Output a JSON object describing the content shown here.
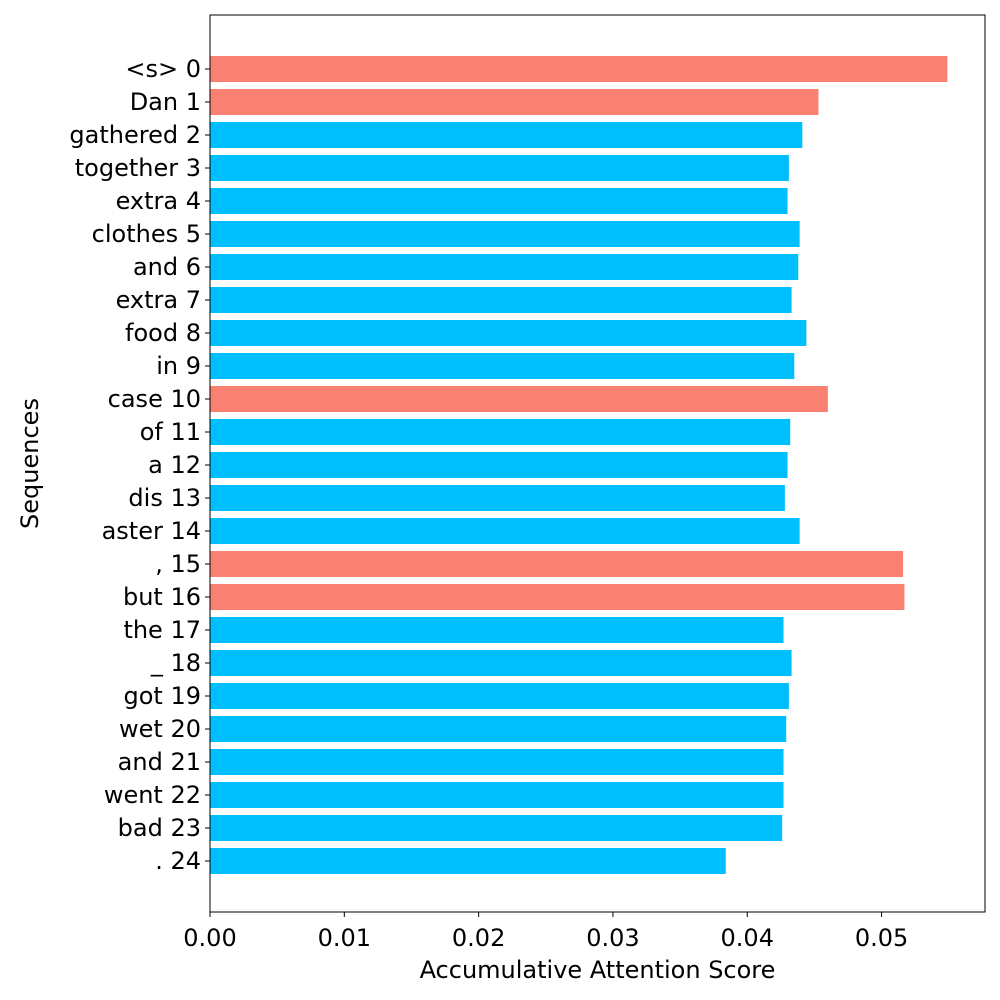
{
  "chart_data": {
    "type": "bar",
    "orientation": "horizontal",
    "title": "",
    "xlabel": "Accumulative Attention Score",
    "ylabel": "Sequences",
    "xlim": [
      0,
      0.0577
    ],
    "x_ticks": [
      "0.00",
      "0.01",
      "0.02",
      "0.03",
      "0.04",
      "0.05"
    ],
    "grid": false,
    "legend": "none",
    "colors": {
      "highlight": "#fa8072",
      "normal": "#00bfff"
    },
    "categories": [
      "<s> 0",
      "Dan 1",
      "gathered 2",
      "together 3",
      "extra 4",
      "clothes 5",
      "and 6",
      "extra 7",
      "food 8",
      "in 9",
      "case 10",
      "of 11",
      "a 12",
      "dis 13",
      "aster 14",
      ", 15",
      "but 16",
      "the 17",
      "_ 18",
      "got 19",
      "wet 20",
      "and 21",
      "went 22",
      "bad 23",
      ". 24"
    ],
    "values": [
      0.0549,
      0.0453,
      0.0441,
      0.0431,
      0.043,
      0.0439,
      0.0438,
      0.0433,
      0.0444,
      0.0435,
      0.046,
      0.0432,
      0.043,
      0.0428,
      0.0439,
      0.0516,
      0.0517,
      0.0427,
      0.0433,
      0.0431,
      0.0429,
      0.0427,
      0.0427,
      0.0426,
      0.0384
    ],
    "highlighted": [
      true,
      true,
      false,
      false,
      false,
      false,
      false,
      false,
      false,
      false,
      true,
      false,
      false,
      false,
      false,
      true,
      true,
      false,
      false,
      false,
      false,
      false,
      false,
      false,
      false
    ]
  }
}
